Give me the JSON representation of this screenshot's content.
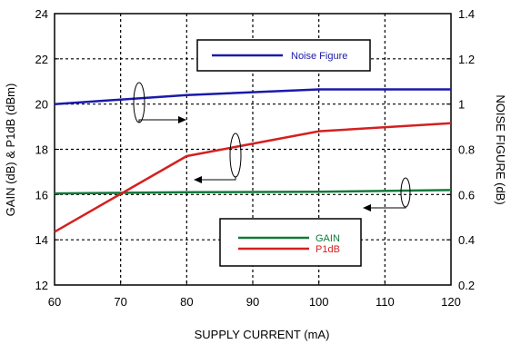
{
  "chart_data": {
    "type": "line",
    "xlabel": "SUPPLY CURRENT (mA)",
    "ylabel_left": "GAIN (dB) & P1dB (dBm)",
    "ylabel_right": "NOISE FIGURE (dB)",
    "xlim": [
      60,
      120
    ],
    "ylim_left": [
      12,
      24
    ],
    "ylim_right": [
      0.2,
      1.4
    ],
    "x_ticks": [
      "60",
      "70",
      "80",
      "90",
      "100",
      "110",
      "120"
    ],
    "y_left_ticks": [
      "12",
      "14",
      "16",
      "18",
      "20",
      "22",
      "24"
    ],
    "y_right_ticks": [
      "0.2",
      "0.4",
      "0.6",
      "0.8",
      "1",
      "1.2",
      "1.4"
    ],
    "grid": true,
    "series": [
      {
        "name": "Noise Figure",
        "axis": "right",
        "color": "#1a1aaa",
        "x": [
          60,
          80,
          100,
          120
        ],
        "values": [
          1.0,
          1.04,
          1.065,
          1.065
        ]
      },
      {
        "name": "GAIN",
        "axis": "left",
        "color": "#117a3a",
        "x": [
          60,
          80,
          100,
          120
        ],
        "values": [
          16.05,
          16.1,
          16.12,
          16.2
        ]
      },
      {
        "name": "P1dB",
        "axis": "left",
        "color": "#d42020",
        "x": [
          60,
          80,
          100,
          120
        ],
        "values": [
          14.35,
          17.7,
          18.8,
          19.15
        ]
      }
    ],
    "legends": [
      {
        "position": "top-center",
        "entries": [
          "Noise Figure"
        ]
      },
      {
        "position": "bottom-center",
        "entries": [
          "GAIN",
          "P1dB"
        ]
      }
    ]
  }
}
